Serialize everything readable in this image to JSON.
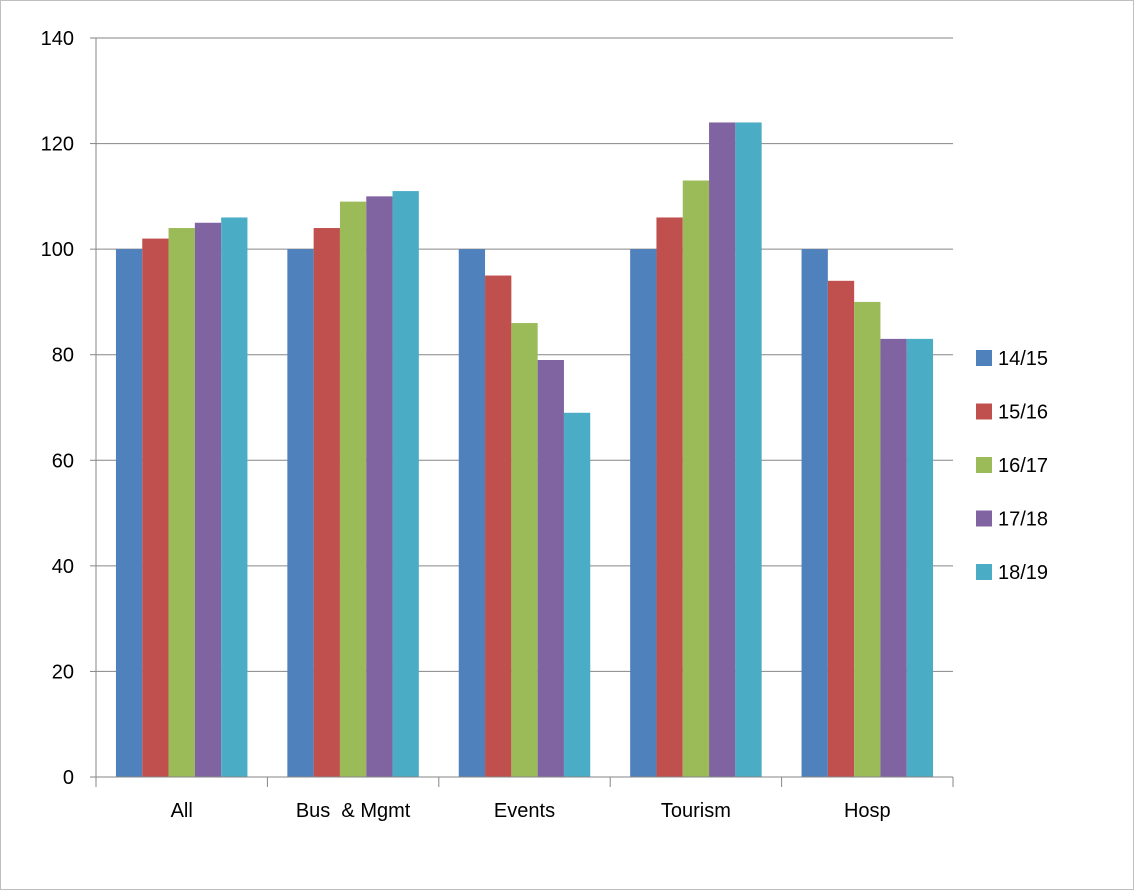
{
  "chart_data": {
    "type": "bar",
    "title": "",
    "xlabel": "",
    "ylabel": "",
    "ylim": [
      0,
      140
    ],
    "yticks": [
      0,
      20,
      40,
      60,
      80,
      100,
      120,
      140
    ],
    "grid": true,
    "legend_position": "right",
    "categories": [
      "All",
      "Bus  & Mgmt",
      "Events",
      "Tourism",
      "Hosp"
    ],
    "series": [
      {
        "name": "14/15",
        "color": "#4F81BD",
        "values": [
          100,
          100,
          100,
          100,
          100
        ]
      },
      {
        "name": "15/16",
        "color": "#C0504D",
        "values": [
          102,
          104,
          95,
          106,
          94
        ]
      },
      {
        "name": "16/17",
        "color": "#9BBB59",
        "values": [
          104,
          109,
          86,
          113,
          90
        ]
      },
      {
        "name": "17/18",
        "color": "#8064A2",
        "values": [
          105,
          110,
          79,
          124,
          83
        ]
      },
      {
        "name": "18/19",
        "color": "#4BACC6",
        "values": [
          106,
          111,
          69,
          124,
          83
        ]
      }
    ]
  }
}
